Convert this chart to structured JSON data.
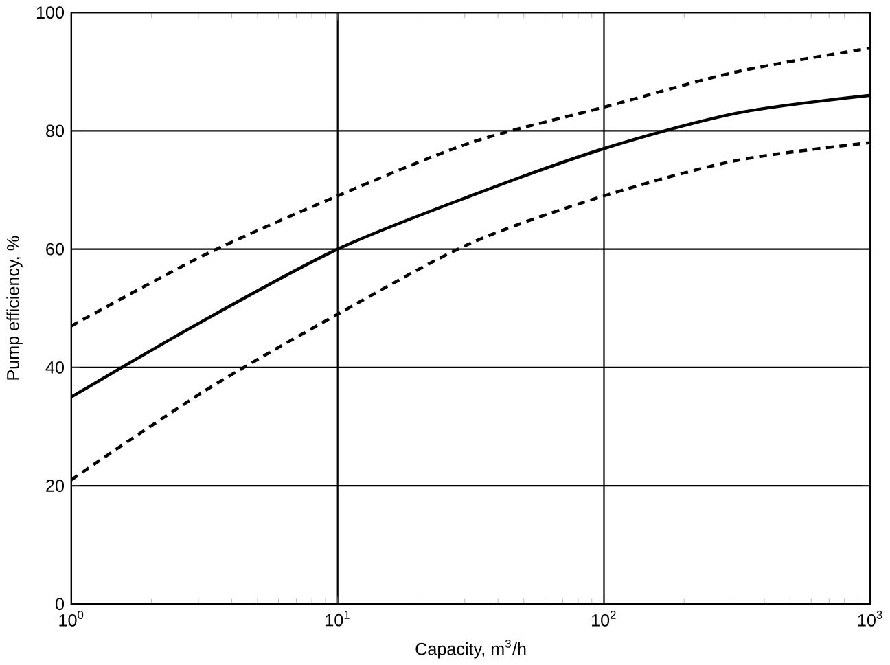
{
  "chart_data": {
    "type": "line",
    "xlabel": "Capacity,  m$^{3}$/h",
    "ylabel": "Pump efficiency, %",
    "log": "x",
    "grid": true,
    "marker": "none",
    "xlim": [
      1,
      1000
    ],
    "ylim": [
      0,
      100
    ],
    "xticks": [
      {
        "value": 1,
        "label": "10$^{0}$"
      },
      {
        "value": 10,
        "label": "10$^{1}$"
      },
      {
        "value": 100,
        "label": "10$^{2}$"
      },
      {
        "value": 1000,
        "label": "10$^{3}$"
      }
    ],
    "yticks": [
      0,
      20,
      40,
      60,
      80,
      100
    ],
    "x": [
      1,
      3.16,
      10,
      31.6,
      100,
      316,
      1000
    ],
    "series": [
      {
        "color": "#000000",
        "line_style": "dashed",
        "values": [
          47,
          59,
          69,
          78,
          84,
          90,
          94
        ]
      },
      {
        "color": "#000000",
        "line_style": "solid",
        "values": [
          35,
          48,
          60,
          69,
          77,
          83,
          86
        ]
      },
      {
        "color": "#000000",
        "line_style": "dashed",
        "values": [
          21,
          36,
          49,
          61,
          69,
          75,
          78
        ]
      }
    ]
  }
}
